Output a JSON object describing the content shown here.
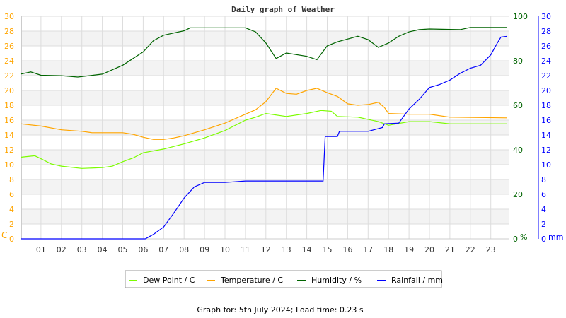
{
  "chart_data": {
    "type": "line",
    "title": "Daily graph of Weather",
    "footer": "Graph for: 5th July 2024; Load time: 0.23 s",
    "x_ticks": [
      "01",
      "02",
      "03",
      "04",
      "05",
      "06",
      "07",
      "08",
      "09",
      "10",
      "11",
      "12",
      "13",
      "14",
      "15",
      "16",
      "17",
      "18",
      "19",
      "20",
      "21",
      "22",
      "23"
    ],
    "axes": {
      "left": {
        "unit": "C",
        "range": [
          0,
          30
        ],
        "step": 2,
        "color": "#ffa500"
      },
      "right1": {
        "unit": "%",
        "range": [
          0,
          100
        ],
        "step": 20,
        "color": "#006400"
      },
      "right2": {
        "unit": "mm",
        "range": [
          0,
          30
        ],
        "step": 2,
        "color": "#0000ff"
      }
    },
    "grid": true,
    "legend_position": "bottom",
    "series": [
      {
        "name": "Dew Point / C",
        "axis": "left",
        "color": "#7cfc00",
        "points": [
          [
            0,
            11.0
          ],
          [
            0.7,
            11.2
          ],
          [
            1,
            10.8
          ],
          [
            1.5,
            10.1
          ],
          [
            2,
            9.8
          ],
          [
            3,
            9.5
          ],
          [
            4,
            9.6
          ],
          [
            4.5,
            9.8
          ],
          [
            5,
            10.4
          ],
          [
            5.5,
            10.9
          ],
          [
            6,
            11.6
          ],
          [
            7,
            12.1
          ],
          [
            8,
            12.8
          ],
          [
            9,
            13.6
          ],
          [
            10,
            14.6
          ],
          [
            11,
            16.0
          ],
          [
            11.5,
            16.4
          ],
          [
            12,
            16.9
          ],
          [
            13,
            16.5
          ],
          [
            14,
            16.9
          ],
          [
            14.7,
            17.3
          ],
          [
            15.2,
            17.2
          ],
          [
            15.5,
            16.5
          ],
          [
            16.5,
            16.4
          ],
          [
            17,
            16.1
          ],
          [
            17.5,
            15.8
          ],
          [
            18,
            15.3
          ],
          [
            19,
            15.8
          ],
          [
            20,
            15.8
          ],
          [
            21,
            15.5
          ],
          [
            22,
            15.5
          ],
          [
            23.8,
            15.5
          ]
        ]
      },
      {
        "name": "Temperature / C",
        "axis": "left",
        "color": "#ffa500",
        "points": [
          [
            0,
            15.5
          ],
          [
            1,
            15.2
          ],
          [
            2,
            14.7
          ],
          [
            3,
            14.5
          ],
          [
            3.5,
            14.3
          ],
          [
            5,
            14.3
          ],
          [
            5.5,
            14.1
          ],
          [
            6,
            13.7
          ],
          [
            6.5,
            13.4
          ],
          [
            7,
            13.4
          ],
          [
            7.5,
            13.6
          ],
          [
            8,
            13.9
          ],
          [
            9,
            14.7
          ],
          [
            10,
            15.6
          ],
          [
            11,
            16.8
          ],
          [
            11.5,
            17.4
          ],
          [
            12,
            18.5
          ],
          [
            12.5,
            20.3
          ],
          [
            13,
            19.6
          ],
          [
            13.5,
            19.5
          ],
          [
            14,
            20.0
          ],
          [
            14.5,
            20.3
          ],
          [
            15,
            19.7
          ],
          [
            15.5,
            19.2
          ],
          [
            16,
            18.2
          ],
          [
            16.5,
            18.0
          ],
          [
            17,
            18.1
          ],
          [
            17.5,
            18.4
          ],
          [
            17.8,
            17.7
          ],
          [
            18,
            16.9
          ],
          [
            19,
            16.8
          ],
          [
            20,
            16.8
          ],
          [
            21,
            16.4
          ],
          [
            23.8,
            16.3
          ]
        ]
      },
      {
        "name": "Humidity / %",
        "axis": "right1",
        "color": "#006400",
        "points": [
          [
            0,
            74
          ],
          [
            0.5,
            75
          ],
          [
            1,
            73.5
          ],
          [
            2,
            73.3
          ],
          [
            2.8,
            72.7
          ],
          [
            4,
            74
          ],
          [
            5,
            78
          ],
          [
            6,
            84
          ],
          [
            6.5,
            89
          ],
          [
            7,
            91.5
          ],
          [
            8,
            93.5
          ],
          [
            8.3,
            94.8
          ],
          [
            11,
            94.8
          ],
          [
            11.5,
            93
          ],
          [
            12,
            88
          ],
          [
            12.5,
            81
          ],
          [
            13,
            83.5
          ],
          [
            14,
            82
          ],
          [
            14.5,
            80.5
          ],
          [
            15,
            86.7
          ],
          [
            15.5,
            88.5
          ],
          [
            16.5,
            91
          ],
          [
            17,
            89.5
          ],
          [
            17.5,
            86
          ],
          [
            18,
            88
          ],
          [
            18.5,
            91
          ],
          [
            19,
            93
          ],
          [
            19.5,
            94
          ],
          [
            20,
            94.3
          ],
          [
            21.5,
            94
          ],
          [
            22,
            95
          ],
          [
            23.8,
            95
          ]
        ]
      },
      {
        "name": "Rainfall / mm",
        "axis": "right2",
        "color": "#0000ff",
        "points": [
          [
            0,
            0
          ],
          [
            6.1,
            0
          ],
          [
            6.5,
            0.6
          ],
          [
            7,
            1.6
          ],
          [
            7.5,
            3.5
          ],
          [
            8,
            5.5
          ],
          [
            8.5,
            7
          ],
          [
            9,
            7.6
          ],
          [
            10,
            7.6
          ],
          [
            11,
            7.8
          ],
          [
            14.8,
            7.8
          ],
          [
            14.9,
            13.8
          ],
          [
            15.5,
            13.8
          ],
          [
            15.6,
            14.5
          ],
          [
            17,
            14.5
          ],
          [
            17.7,
            15
          ],
          [
            17.8,
            15.5
          ],
          [
            18.5,
            15.6
          ],
          [
            19,
            17.5
          ],
          [
            19.5,
            18.8
          ],
          [
            20,
            20.4
          ],
          [
            20.5,
            20.8
          ],
          [
            21,
            21.4
          ],
          [
            21.5,
            22.3
          ],
          [
            22,
            23
          ],
          [
            22.5,
            23.4
          ],
          [
            23,
            24.8
          ],
          [
            23.3,
            26.3
          ],
          [
            23.5,
            27.2
          ],
          [
            23.8,
            27.3
          ]
        ]
      }
    ]
  }
}
